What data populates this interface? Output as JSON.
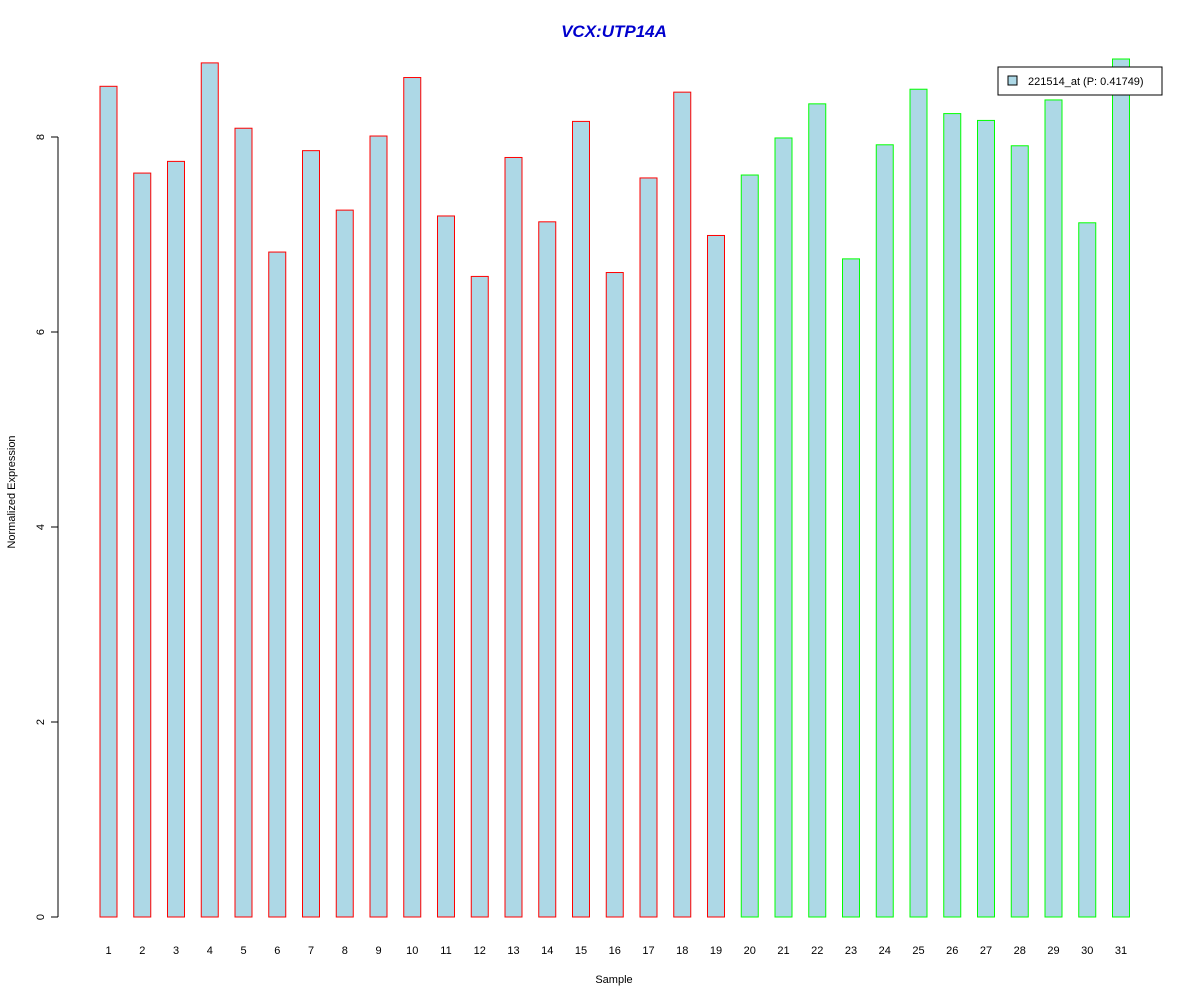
{
  "chart_data": {
    "type": "bar",
    "title": "VCX:UTP14A",
    "xlabel": "Sample",
    "ylabel": "Normalized Expression",
    "ylim": [
      0,
      8.8
    ],
    "yticks": [
      "0",
      "2",
      "4",
      "6",
      "8"
    ],
    "categories": [
      "1",
      "2",
      "3",
      "4",
      "5",
      "6",
      "7",
      "8",
      "9",
      "10",
      "11",
      "12",
      "13",
      "14",
      "15",
      "16",
      "17",
      "18",
      "19",
      "20",
      "21",
      "22",
      "23",
      "24",
      "25",
      "26",
      "27",
      "28",
      "29",
      "30",
      "31"
    ],
    "series": [
      {
        "name": "221514_at (P: 0.41749)",
        "values": [
          8.52,
          7.63,
          7.75,
          8.76,
          8.09,
          6.82,
          7.86,
          7.25,
          8.01,
          8.61,
          7.19,
          6.57,
          7.79,
          7.13,
          8.16,
          6.61,
          7.58,
          8.46,
          6.99,
          7.61,
          7.99,
          8.34,
          6.75,
          7.92,
          8.49,
          8.24,
          8.17,
          7.91,
          8.38,
          7.12,
          8.8
        ]
      }
    ],
    "groups": [
      "red",
      "red",
      "red",
      "red",
      "red",
      "red",
      "red",
      "red",
      "red",
      "red",
      "red",
      "red",
      "red",
      "red",
      "red",
      "red",
      "red",
      "red",
      "red",
      "green",
      "green",
      "green",
      "green",
      "green",
      "green",
      "green",
      "green",
      "green",
      "green",
      "green",
      "green"
    ],
    "colors": {
      "bar_fill": "#add8e6",
      "group_red": "#ff0000",
      "group_green": "#00ff00",
      "title": "#0000cd"
    },
    "legend": {
      "position": "top-right",
      "label": "221514_at (P: 0.41749)"
    },
    "grid": false
  }
}
